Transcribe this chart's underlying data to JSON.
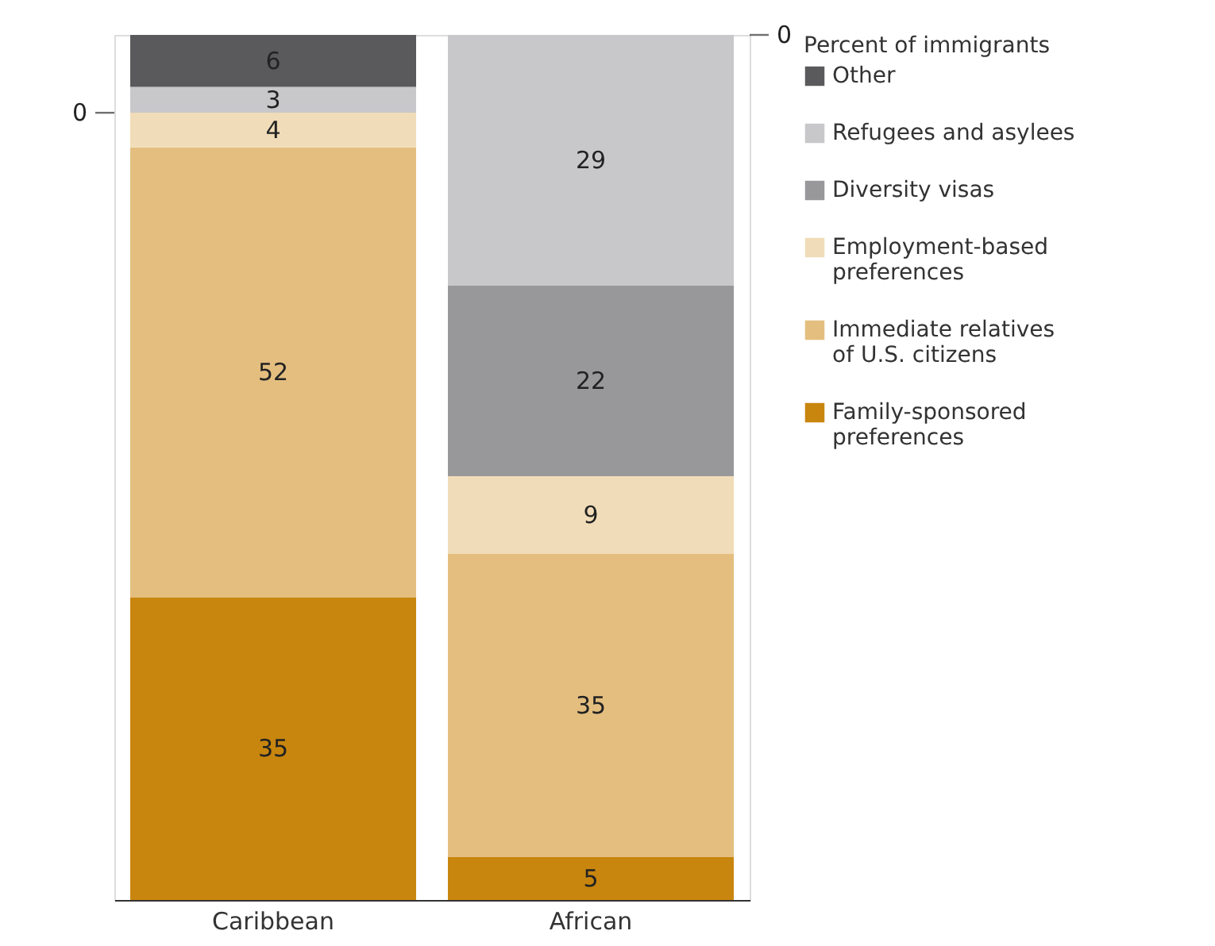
{
  "chart_data": {
    "type": "bar",
    "stacked": true,
    "annotations": [
      "0",
      "0"
    ],
    "legend": "right",
    "legend_title": "Percent of immigrants",
    "categories": [
      "Caribbean",
      "African"
    ],
    "series": [
      {
        "name": "Family-sponsored preferences",
        "color": "#c8860e",
        "values": [
          35,
          5
        ],
        "value_labels": [
          "35",
          "5"
        ]
      },
      {
        "name": "Immediate relatives of U.S. citizens",
        "color": "#e4be7f",
        "values": [
          52,
          35
        ],
        "value_labels": [
          "52",
          "35"
        ]
      },
      {
        "name": "Employment-based preferences",
        "color": "#f0dcb8",
        "values": [
          4,
          9
        ],
        "value_labels": [
          "4",
          "9"
        ]
      },
      {
        "name": "Diversity visas",
        "color": "#98989b",
        "values": [
          0,
          22
        ],
        "value_labels": [
          null,
          "22"
        ]
      },
      {
        "name": "Refugees and asylees",
        "color": "#c8c8ca",
        "values": [
          3,
          29
        ],
        "value_labels": [
          "3",
          "29"
        ]
      },
      {
        "name": "Other",
        "color": "#5a5a5c",
        "values": [
          6,
          0
        ],
        "value_labels": [
          "6",
          null
        ]
      }
    ]
  }
}
